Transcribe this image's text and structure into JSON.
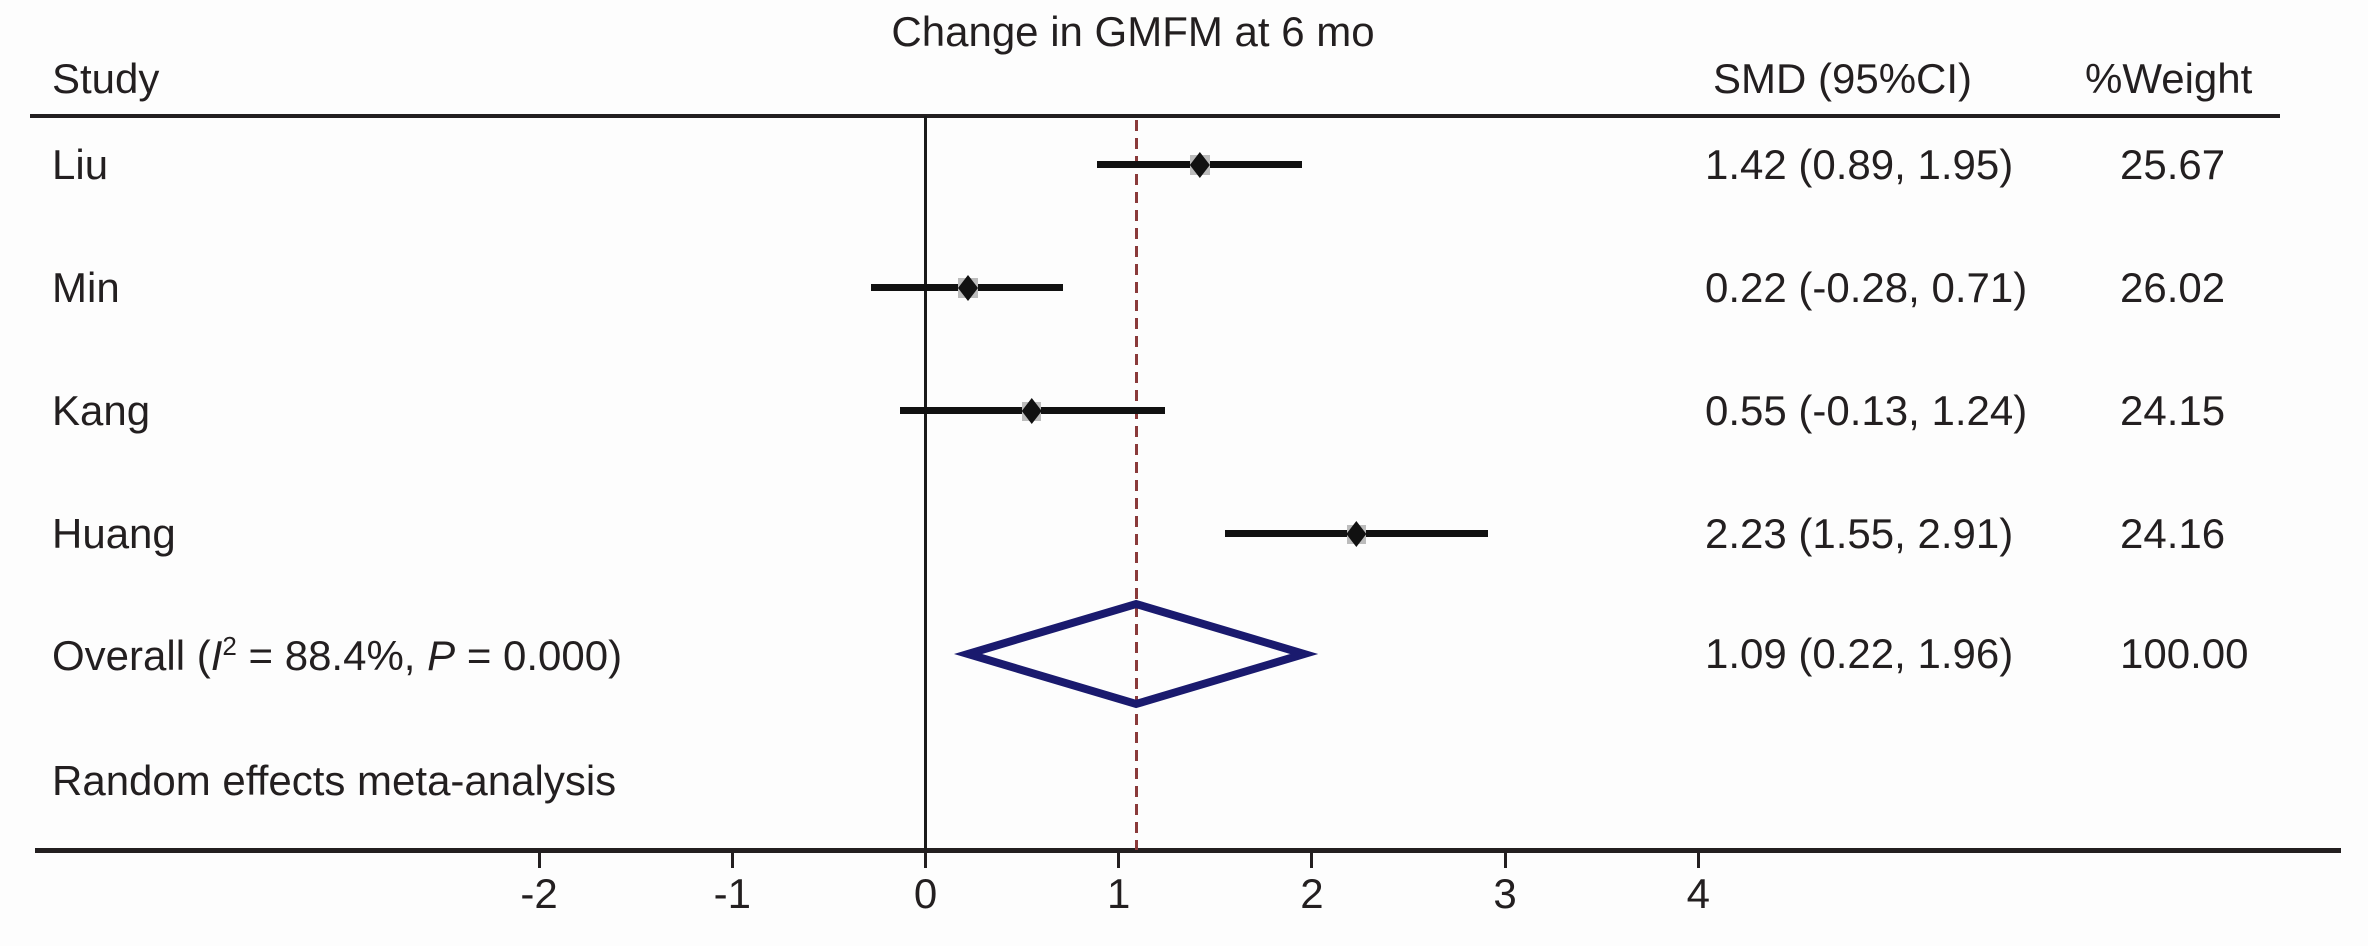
{
  "title": "Change in GMFM at 6 mo",
  "columns": {
    "study": "Study",
    "smd": "SMD (95%CI)",
    "weight": "%Weight"
  },
  "note": "Random effects meta-analysis",
  "overall": {
    "prefix": "Overall (",
    "i_label": "I",
    "i_sup": "2",
    "mid": " = 88.4%, ",
    "p_label": "P",
    "suffix": " = 0.000)",
    "smd_text": "1.09 (0.22, 1.96)",
    "weight_text": "100.00"
  },
  "colors": {
    "text": "#231f20",
    "ci_line": "#111111",
    "weight_box": "#bcbcbc",
    "overall_diamond": "#1a1a6e",
    "overall_dashed_line": "#8a3a3a",
    "zero_line": "#1a1a1a"
  },
  "chart_data": {
    "type": "forest",
    "title": "Change in GMFM at 6 mo",
    "xlabel": "",
    "x_ticks": [
      -2,
      -1,
      0,
      1,
      2,
      3,
      4
    ],
    "xlim": [
      -4.6,
      7.3
    ],
    "zero_line": 0,
    "overall_effect_line": 1.09,
    "studies": [
      {
        "name": "Liu",
        "est": 1.42,
        "lo": 0.89,
        "hi": 1.95,
        "smd_text": "1.42 (0.89, 1.95)",
        "weight": 25.67,
        "weight_text": "25.67"
      },
      {
        "name": "Min",
        "est": 0.22,
        "lo": -0.28,
        "hi": 0.71,
        "smd_text": "0.22 (-0.28, 0.71)",
        "weight": 26.02,
        "weight_text": "26.02"
      },
      {
        "name": "Kang",
        "est": 0.55,
        "lo": -0.13,
        "hi": 1.24,
        "smd_text": "0.55 (-0.13, 1.24)",
        "weight": 24.15,
        "weight_text": "24.15"
      },
      {
        "name": "Huang",
        "est": 2.23,
        "lo": 1.55,
        "hi": 2.91,
        "smd_text": "2.23 (1.55, 2.91)",
        "weight": 24.16,
        "weight_text": "24.16"
      }
    ],
    "overall": {
      "label": "Overall (I2 = 88.4%, P = 0.000)",
      "i_squared_pct": 88.4,
      "p_value": "0.000",
      "est": 1.09,
      "lo": 0.22,
      "hi": 1.96,
      "weight": 100.0
    },
    "note": "Random effects meta-analysis",
    "model": "Random effects meta-analysis",
    "legend_position": "none",
    "grid": false
  }
}
